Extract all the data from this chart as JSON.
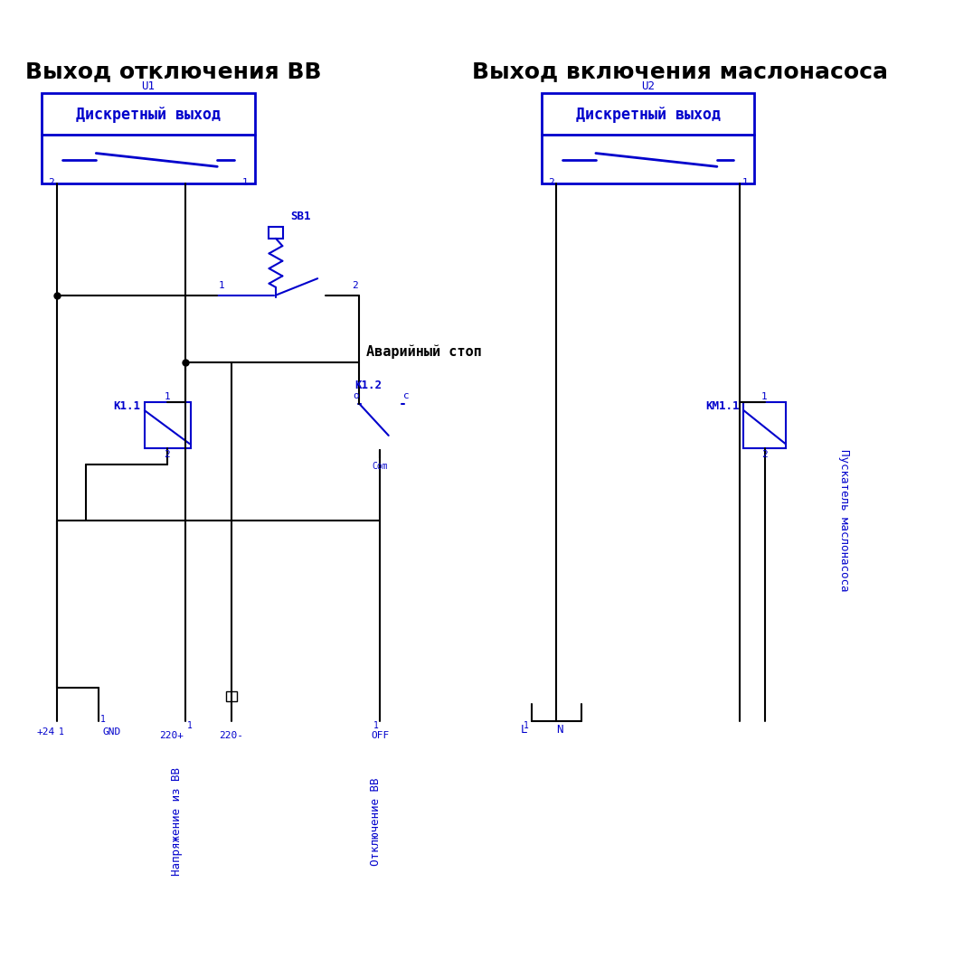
{
  "title_left": "Выход отключения ВВ",
  "title_right": "Выход включения маслонасоса",
  "blue": "#0000CC",
  "black": "#000000",
  "bg": "#FFFFFF",
  "label_U1": "U1",
  "label_U2": "U2",
  "box_text": "Дискретный выход",
  "label_SB1": "SB1",
  "label_K11": "K1.1",
  "label_K12": "K1.2",
  "label_KM11": "KM1.1",
  "label_emergency": "Аварийный стоп",
  "label_plus24": "+24",
  "label_GND": "GND",
  "label_220plus": "220+",
  "label_220minus": "220-",
  "label_OFF": "OFF",
  "label_bottom_left": "Напряжение из ВВ",
  "label_bottom_mid": "Отключение ВВ",
  "label_bottom_right": "Пускатель маслонасоса",
  "label_L": "L",
  "label_N": "N",
  "label_com": "Com",
  "label_1": "1",
  "label_2": "2",
  "label_o": "o",
  "label_c": "c"
}
